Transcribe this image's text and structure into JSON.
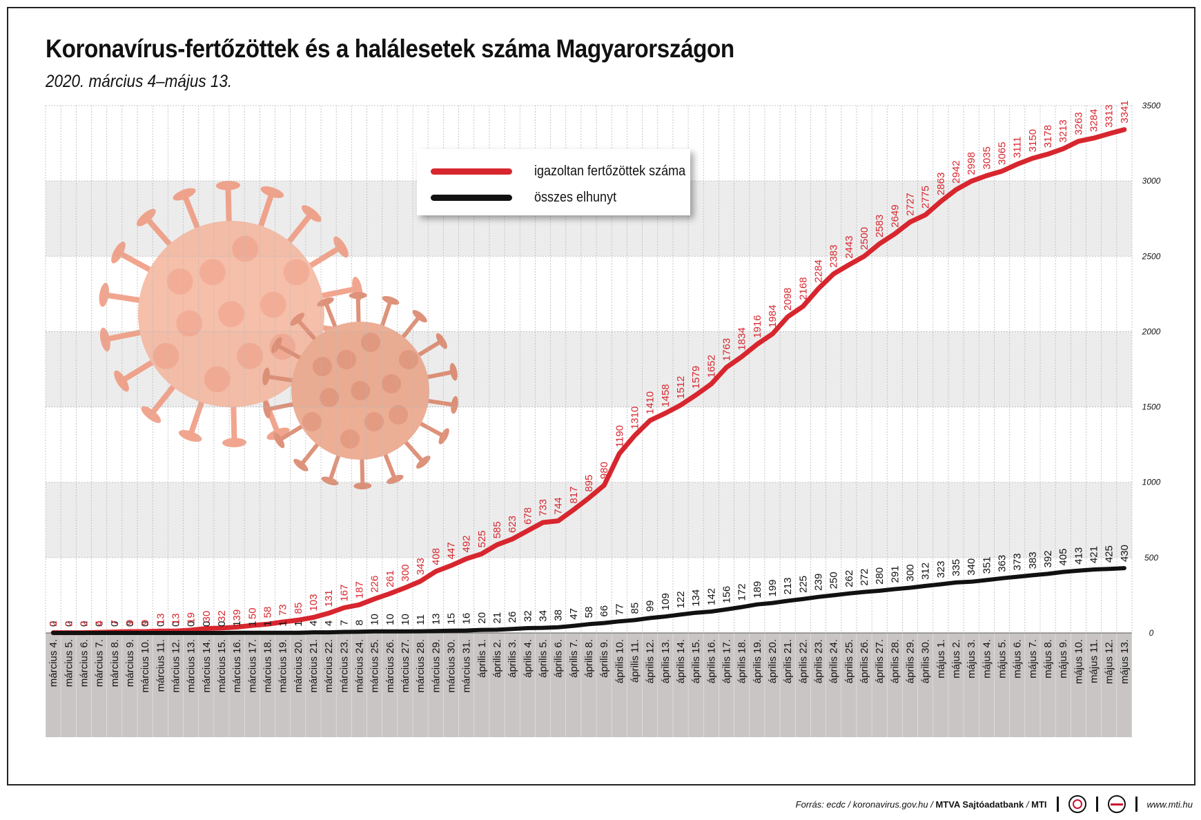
{
  "title": "Koronavírus-fertőzöttek és a halálesetek száma Magyarországon",
  "subtitle": "2020. március 4–május 13.",
  "legend": {
    "confirmed_label": "igazoltan fertőzöttek száma",
    "deaths_label": "összes elhunyt"
  },
  "colors": {
    "confirmed": "#d7262e",
    "deaths": "#111111",
    "band_light": "#ececec",
    "below_zero": "#c9c5c5",
    "virus": "#f3a486"
  },
  "footer": {
    "source_prefix": "Forrás: ecdc / koronavirus.gov.hu / ",
    "source_bold": "MTVA Sajtóadatbank",
    "source_sep": " / ",
    "source_mti": "MTI",
    "website": "www.mti.hu"
  },
  "chart_data": {
    "type": "line",
    "title": "Koronavírus-fertőzöttek és a halálesetek száma Magyarországon",
    "subtitle": "2020. március 4–május 13.",
    "ylim": [
      0,
      3500
    ],
    "yticks": [
      "0",
      "500",
      "1000",
      "1500",
      "2000",
      "2500",
      "3000",
      "3500"
    ],
    "grid": true,
    "legend_position": "top-center",
    "categories": [
      "március 4.",
      "március 5.",
      "március 6.",
      "március 7.",
      "március 8.",
      "március 9.",
      "március 10.",
      "március 11.",
      "március 12.",
      "március 13.",
      "március 14.",
      "március 15.",
      "március 16.",
      "március 17.",
      "március 18.",
      "március 19.",
      "március 20.",
      "március 21.",
      "március 22.",
      "március 23.",
      "március 24.",
      "március 25.",
      "március 26.",
      "március 27.",
      "március 28.",
      "március 29.",
      "március 30.",
      "március 31.",
      "április 1.",
      "április 2.",
      "április 3.",
      "április 4.",
      "április 5.",
      "április 6.",
      "április 7.",
      "április 8.",
      "április 9.",
      "április 10.",
      "április 11.",
      "április 12.",
      "április 13.",
      "április 14.",
      "április 15.",
      "április 16.",
      "április 17.",
      "április 18.",
      "április 19.",
      "április 20.",
      "április 21.",
      "április 22.",
      "április 23.",
      "április 24.",
      "április 25.",
      "április 26.",
      "április 27.",
      "április 28.",
      "április 29.",
      "április 30.",
      "május 1.",
      "május 2.",
      "május 3.",
      "május 4.",
      "május 5.",
      "május 6.",
      "május 7.",
      "május 8.",
      "május 9.",
      "május 10.",
      "május 11.",
      "május 12.",
      "május 13."
    ],
    "series": [
      {
        "name": "igazoltan fertőzöttek száma",
        "color": "#d7262e",
        "values": [
          2,
          2,
          2,
          4,
          7,
          9,
          9,
          13,
          13,
          19,
          30,
          32,
          39,
          50,
          58,
          73,
          85,
          103,
          131,
          167,
          187,
          226,
          261,
          300,
          343,
          408,
          447,
          492,
          525,
          585,
          623,
          678,
          733,
          744,
          817,
          895,
          980,
          1190,
          1310,
          1410,
          1458,
          1512,
          1579,
          1652,
          1763,
          1834,
          1916,
          1984,
          2098,
          2168,
          2284,
          2383,
          2443,
          2500,
          2583,
          2649,
          2727,
          2775,
          2863,
          2942,
          2998,
          3035,
          3065,
          3111,
          3150,
          3178,
          3213,
          3263,
          3284,
          3313,
          3341
        ]
      },
      {
        "name": "összes elhunyt",
        "color": "#111111",
        "values": [
          0,
          0,
          0,
          0,
          0,
          0,
          0,
          0,
          0,
          0,
          0,
          0,
          1,
          1,
          1,
          1,
          1,
          4,
          4,
          7,
          8,
          10,
          10,
          10,
          11,
          13,
          15,
          16,
          20,
          21,
          26,
          32,
          34,
          38,
          47,
          58,
          66,
          77,
          85,
          99,
          109,
          122,
          134,
          142,
          156,
          172,
          189,
          199,
          213,
          225,
          239,
          250,
          262,
          272,
          280,
          291,
          300,
          312,
          323,
          335,
          340,
          351,
          363,
          373,
          383,
          392,
          405,
          413,
          421,
          425,
          430
        ]
      }
    ]
  }
}
